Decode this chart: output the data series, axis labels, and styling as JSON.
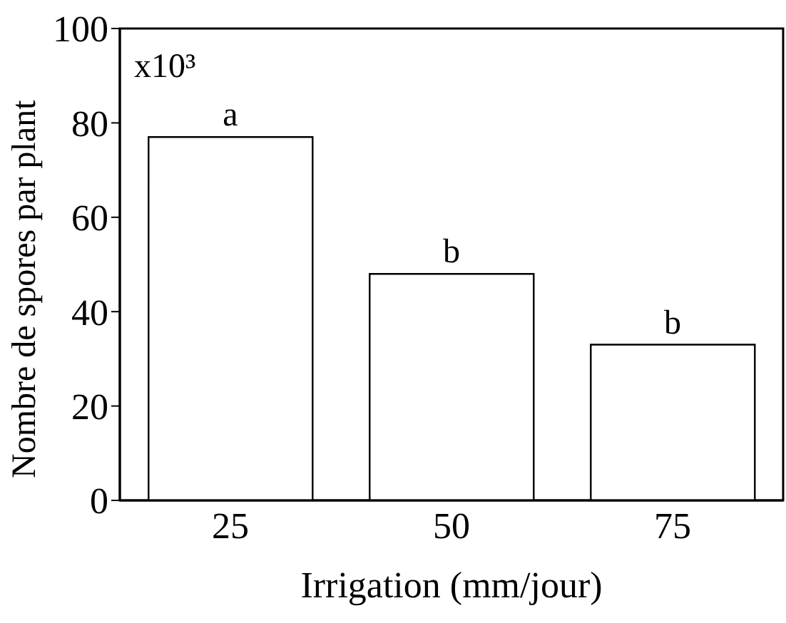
{
  "chart_data": {
    "type": "bar",
    "xlabel": "Irrigation (mm/jour)",
    "ylabel": "Nombre de spores par plant",
    "categories": [
      "25",
      "50",
      "75"
    ],
    "series": [
      {
        "color": "#ffffff",
        "values": [
          77,
          48,
          33
        ]
      }
    ],
    "ylim": [
      0,
      100
    ],
    "yticks": [
      0,
      20,
      40,
      60,
      80,
      100
    ],
    "grid": false,
    "legend": false,
    "annotations": [
      "x10³",
      {
        "text": "a",
        "x": "25",
        "y": 77
      },
      {
        "text": "b",
        "x": "50",
        "y": 48
      },
      {
        "text": "b",
        "x": "75",
        "y": 33
      }
    ]
  }
}
